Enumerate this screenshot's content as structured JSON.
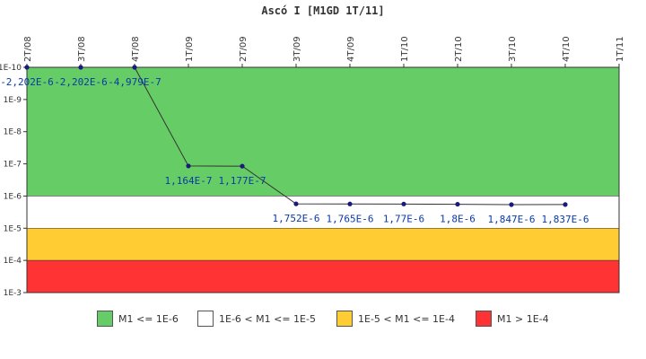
{
  "chart_data": {
    "type": "line",
    "title": "Ascó I [M1GD 1T/11]",
    "categories": [
      "2T/08",
      "3T/08",
      "4T/08",
      "1T/09",
      "2T/09",
      "3T/09",
      "4T/09",
      "1T/10",
      "2T/10",
      "3T/10",
      "4T/10",
      "1T/11"
    ],
    "y_scale": "log",
    "y_reversed": true,
    "y_ticks": [
      {
        "value": 1e-10,
        "label": "1E-10"
      },
      {
        "value": 1e-09,
        "label": "1E-9"
      },
      {
        "value": 1e-08,
        "label": "1E-8"
      },
      {
        "value": 1e-07,
        "label": "1E-7"
      },
      {
        "value": 1e-06,
        "label": "1E-6"
      },
      {
        "value": 1e-05,
        "label": "1E-5"
      },
      {
        "value": 0.0001,
        "label": "1E-4"
      },
      {
        "value": 0.001,
        "label": "1E-3"
      }
    ],
    "ylim": [
      1e-10,
      0.001
    ],
    "series": [
      {
        "color": "#1a1a7a",
        "points": [
          {
            "x": "2T/08",
            "y": 1e-10,
            "label": "-2,202E-6"
          },
          {
            "x": "3T/08",
            "y": 1e-10,
            "label": "-2,202E-6"
          },
          {
            "x": "4T/08",
            "y": 1e-10,
            "label": "-4,979E-7"
          },
          {
            "x": "1T/09",
            "y": 1.164e-07,
            "label": "1,164E-7"
          },
          {
            "x": "2T/09",
            "y": 1.177e-07,
            "label": "1,177E-7"
          },
          {
            "x": "3T/09",
            "y": 1.752e-06,
            "label": "1,752E-6"
          },
          {
            "x": "4T/09",
            "y": 1.765e-06,
            "label": "1,765E-6"
          },
          {
            "x": "1T/10",
            "y": 1.77e-06,
            "label": "1,77E-6"
          },
          {
            "x": "2T/10",
            "y": 1.8e-06,
            "label": "1,8E-6"
          },
          {
            "x": "3T/10",
            "y": 1.847e-06,
            "label": "1,847E-6"
          },
          {
            "x": "4T/10",
            "y": 1.837e-06,
            "label": "1,837E-6"
          }
        ]
      }
    ],
    "bands": [
      {
        "from": 1e-10,
        "to": 1e-06,
        "color": "#66cc66"
      },
      {
        "from": 1e-06,
        "to": 1e-05,
        "color": "#ffffff"
      },
      {
        "from": 1e-05,
        "to": 0.0001,
        "color": "#ffcc33"
      },
      {
        "from": 0.0001,
        "to": 0.001,
        "color": "#ff3333"
      }
    ],
    "legend": {
      "placement": "bottom",
      "items": [
        {
          "label": "M1 <= 1E-6",
          "color": "#66cc66"
        },
        {
          "label": "1E-6 < M1 <= 1E-5",
          "color": "#ffffff"
        },
        {
          "label": "1E-5 < M1 <= 1E-4",
          "color": "#ffcc33"
        },
        {
          "label": "M1 > 1E-4",
          "color": "#ff3333"
        }
      ]
    },
    "grid": false
  }
}
